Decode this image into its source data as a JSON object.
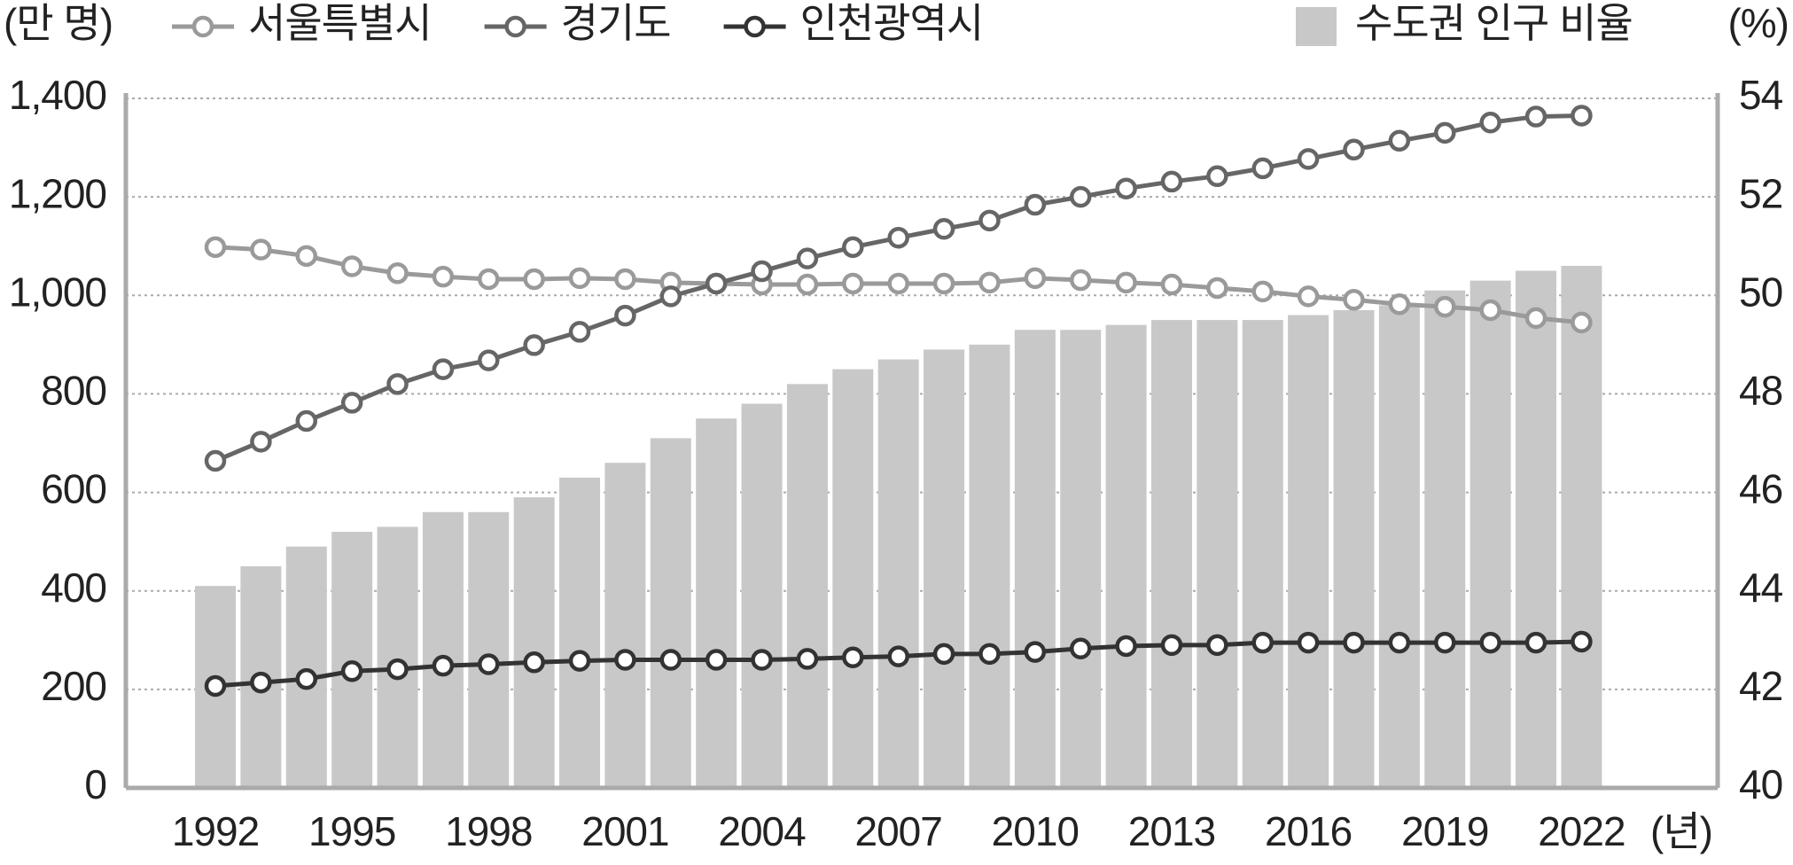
{
  "chart_data": {
    "type": "combo",
    "y_label": "(만 명)",
    "y2_label": "(%)",
    "x_label": "(년)",
    "categories": [
      "1992",
      null,
      null,
      "1995",
      null,
      null,
      "1998",
      null,
      null,
      "2001",
      null,
      null,
      "2004",
      null,
      null,
      "2007",
      null,
      null,
      "2010",
      null,
      null,
      "2013",
      null,
      null,
      "2016",
      null,
      null,
      "2019",
      null,
      null,
      "2022"
    ],
    "ylim": [
      0,
      1400
    ],
    "yticks": [
      0,
      {
        "value": 200,
        "label": "200"
      },
      400,
      600,
      800,
      {
        "value": 1000,
        "label": "1,000"
      },
      {
        "value": 1200,
        "label": "1,200"
      },
      {
        "value": 1400,
        "label": "1,400"
      }
    ],
    "y2lim": [
      40,
      54
    ],
    "y2ticks": [
      40,
      42,
      44,
      46,
      48,
      50,
      52,
      54
    ],
    "grid": true,
    "series": [
      {
        "name": "서울특별시",
        "type": "line",
        "color": "#9a9a9a",
        "values": [
          1098,
          1093,
          1080,
          1059,
          1045,
          1038,
          1033,
          1033,
          1035,
          1033,
          1026,
          1024,
          1022,
          1022,
          1024,
          1024,
          1024,
          1026,
          1035,
          1031,
          1026,
          1022,
          1015,
          1008,
          998,
          991,
          982,
          977,
          970,
          954,
          945
        ]
      },
      {
        "name": "경기도",
        "type": "line",
        "color": "#666666",
        "values": [
          664,
          703,
          745,
          782,
          820,
          850,
          868,
          899,
          926,
          959,
          998,
          1024,
          1049,
          1075,
          1098,
          1117,
          1135,
          1152,
          1184,
          1200,
          1217,
          1231,
          1242,
          1258,
          1277,
          1296,
          1314,
          1330,
          1351,
          1363,
          1365
        ]
      },
      {
        "name": "인천광역시",
        "type": "line",
        "color": "#333333",
        "values": [
          207,
          214,
          221,
          237,
          241,
          248,
          251,
          255,
          258,
          260,
          260,
          260,
          260,
          262,
          265,
          267,
          272,
          272,
          276,
          283,
          288,
          290,
          290,
          295,
          295,
          295,
          295,
          295,
          295,
          295,
          297
        ]
      },
      {
        "name": "수도권 인구 비율",
        "type": "bar",
        "axis": "y2",
        "color": "#c8c8c8",
        "values": [
          44.1,
          44.5,
          44.9,
          45.2,
          45.3,
          45.6,
          45.6,
          45.9,
          46.3,
          46.6,
          47.1,
          47.5,
          47.8,
          48.2,
          48.5,
          48.7,
          48.9,
          49.0,
          49.3,
          49.3,
          49.4,
          49.5,
          49.5,
          49.5,
          49.6,
          49.7,
          49.8,
          50.1,
          50.3,
          50.5,
          50.6
        ]
      }
    ]
  }
}
